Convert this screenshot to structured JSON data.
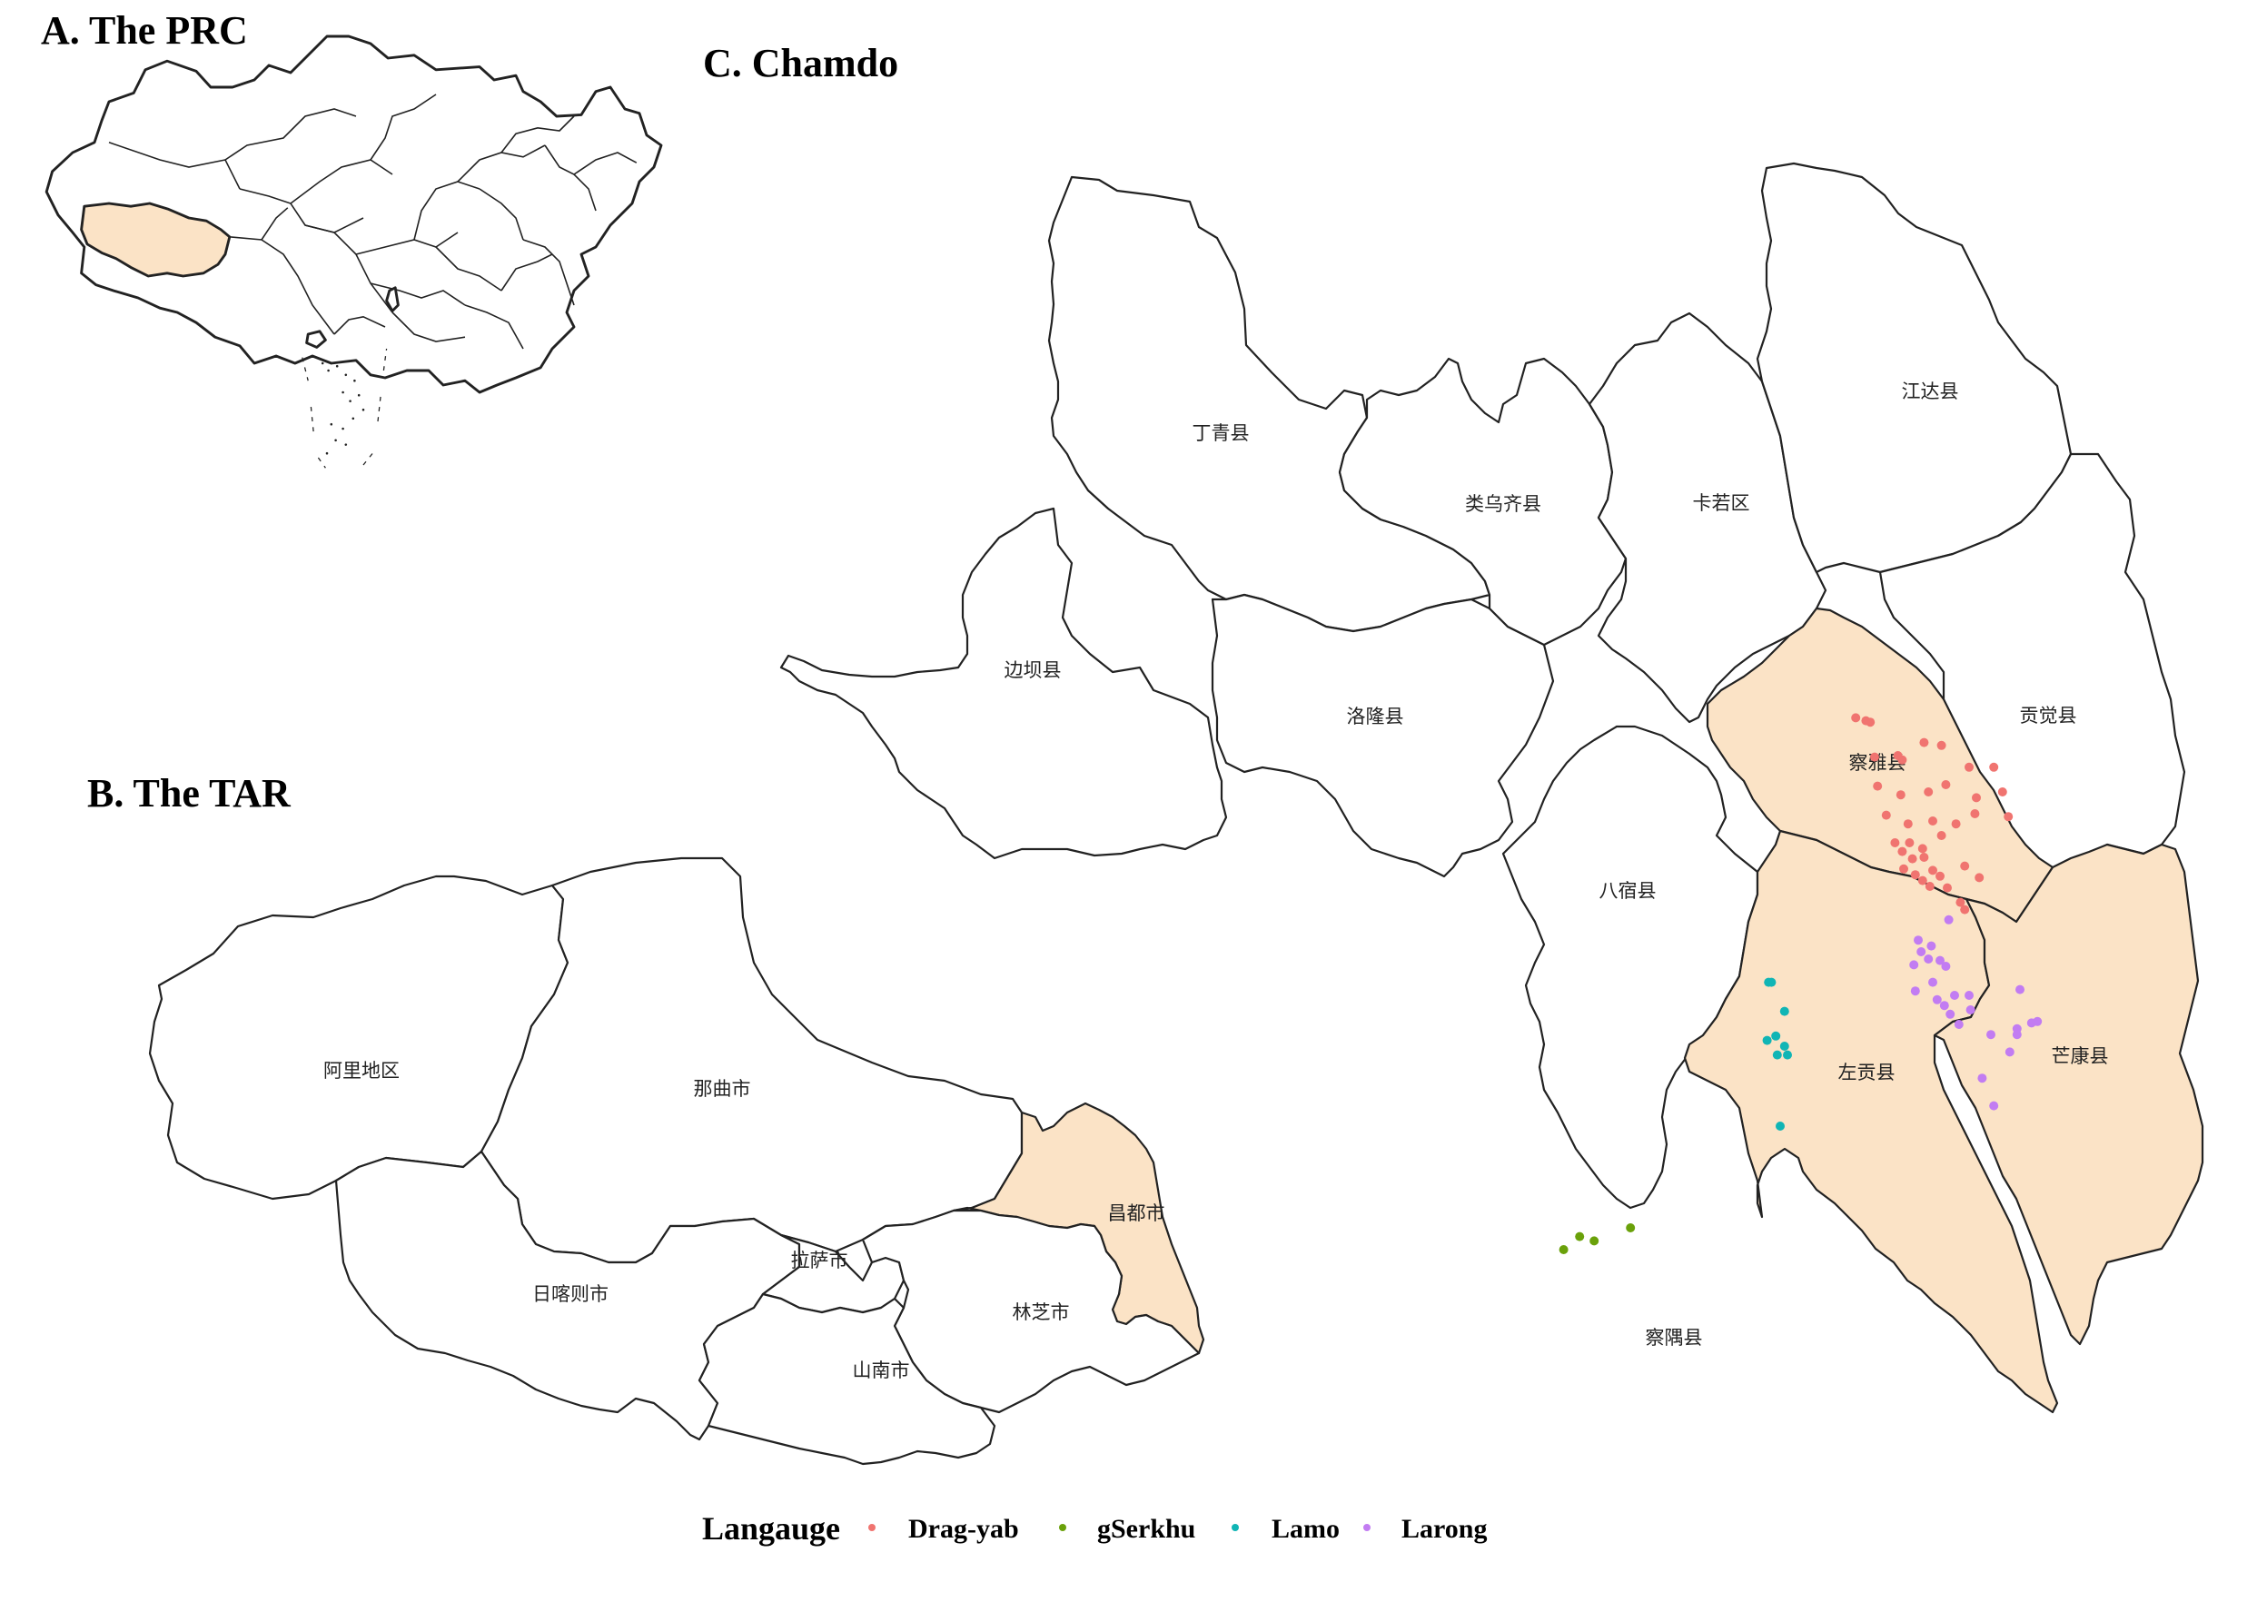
{
  "panels": {
    "prc": {
      "title": "A. The PRC"
    },
    "tar": {
      "title": "B. The TAR"
    },
    "chamdo": {
      "title": "C. Chamdo"
    }
  },
  "colors": {
    "highlight": "#fbe3c6",
    "border": "#222222",
    "drag_yab": "#f07470",
    "gserkhu": "#6aa10a",
    "lamo": "#10b5b5",
    "larong": "#c27cf2"
  },
  "tar_labels": {
    "ali": "阿里地区",
    "naqu": "那曲市",
    "changdu": "昌都市",
    "lasa": "拉萨市",
    "rikaze": "日喀则市",
    "linzhi": "林芝市",
    "shannan": "山南市"
  },
  "chamdo_labels": {
    "dingqing": "丁青县",
    "leiwuqi": "类乌齐县",
    "karuo": "卡若区",
    "jiangda": "江达县",
    "bianba": "边坝县",
    "luolong": "洛隆县",
    "gongjue": "贡觉县",
    "chaya": "察雅县",
    "basu": "八宿县",
    "zuogong": "左贡县",
    "mangkang": "芒康县",
    "chayu": "察隅县"
  },
  "legend": {
    "title": "Langauge",
    "items": [
      {
        "label": "Drag-yab",
        "color": "#f07470"
      },
      {
        "label": "gSerkhu",
        "color": "#6aa10a"
      },
      {
        "label": "Lamo",
        "color": "#10b5b5"
      },
      {
        "label": "Larong",
        "color": "#c27cf2"
      }
    ]
  },
  "points": {
    "drag_yab": [
      [
        1277,
        494
      ],
      [
        1284,
        496
      ],
      [
        1287,
        497
      ],
      [
        1290,
        521
      ],
      [
        1306,
        520
      ],
      [
        1309,
        523
      ],
      [
        1324,
        511
      ],
      [
        1336,
        513
      ],
      [
        1355,
        528
      ],
      [
        1372,
        528
      ],
      [
        1292,
        541
      ],
      [
        1308,
        547
      ],
      [
        1327,
        545
      ],
      [
        1339,
        540
      ],
      [
        1360,
        549
      ],
      [
        1378,
        545
      ],
      [
        1298,
        561
      ],
      [
        1313,
        567
      ],
      [
        1330,
        565
      ],
      [
        1346,
        567
      ],
      [
        1359,
        560
      ],
      [
        1382,
        562
      ],
      [
        1304,
        580
      ],
      [
        1314,
        580
      ],
      [
        1323,
        584
      ],
      [
        1336,
        575
      ],
      [
        1309,
        586
      ],
      [
        1316,
        591
      ],
      [
        1324,
        590
      ],
      [
        1330,
        599
      ],
      [
        1310,
        598
      ],
      [
        1318,
        602
      ],
      [
        1323,
        606
      ],
      [
        1328,
        610
      ],
      [
        1335,
        603
      ],
      [
        1340,
        611
      ],
      [
        1352,
        596
      ],
      [
        1362,
        604
      ],
      [
        1349,
        621
      ],
      [
        1352,
        626
      ]
    ],
    "gserkhu": [
      [
        1076,
        860
      ],
      [
        1087,
        851
      ],
      [
        1097,
        854
      ],
      [
        1122,
        845
      ]
    ],
    "lamo": [
      [
        1217,
        676
      ],
      [
        1219,
        676
      ],
      [
        1228,
        696
      ],
      [
        1222,
        713
      ],
      [
        1216,
        716
      ],
      [
        1228,
        720
      ],
      [
        1230,
        726
      ],
      [
        1223,
        726
      ],
      [
        1225,
        775
      ]
    ],
    "larong": [
      [
        1320,
        647
      ],
      [
        1329,
        651
      ],
      [
        1327,
        660
      ],
      [
        1335,
        661
      ],
      [
        1339,
        665
      ],
      [
        1317,
        664
      ],
      [
        1322,
        655
      ],
      [
        1341,
        633
      ],
      [
        1330,
        676
      ],
      [
        1333,
        688
      ],
      [
        1338,
        692
      ],
      [
        1342,
        698
      ],
      [
        1345,
        685
      ],
      [
        1355,
        685
      ],
      [
        1356,
        695
      ],
      [
        1318,
        682
      ],
      [
        1348,
        705
      ],
      [
        1390,
        681
      ],
      [
        1398,
        704
      ],
      [
        1402,
        703
      ],
      [
        1388,
        708
      ],
      [
        1388,
        712
      ],
      [
        1383,
        724
      ],
      [
        1370,
        712
      ],
      [
        1364,
        742
      ],
      [
        1372,
        761
      ]
    ]
  }
}
